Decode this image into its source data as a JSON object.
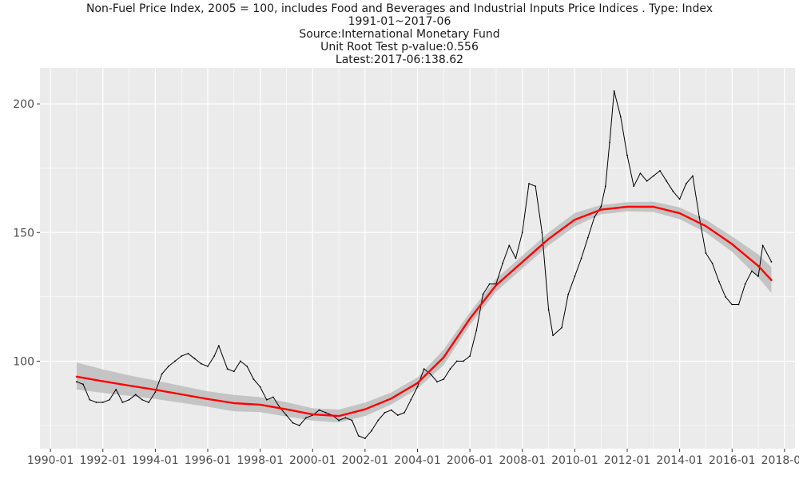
{
  "chart_data": {
    "type": "line",
    "title_lines": [
      "Non-Fuel Price Index, 2005 = 100, includes Food and Beverages and Industrial Inputs Price Indices . Type: Index",
      "1991-01~2017-06",
      "Source:International Monetary Fund",
      "Unit Root Test p-value:0.556",
      "Latest:2017-06:138.62"
    ],
    "xlabel": "",
    "ylabel": "",
    "x_ticks": [
      1990,
      1992,
      1994,
      1996,
      1998,
      2000,
      2002,
      2004,
      2006,
      2008,
      2010,
      2012,
      2014,
      2016,
      2018
    ],
    "x_tick_labels": [
      "1990-01",
      "1992-01",
      "1994-01",
      "1996-01",
      "1998-01",
      "2000-01",
      "2002-01",
      "2004-01",
      "2006-01",
      "2008-01",
      "2010-01",
      "2012-01",
      "2014-01",
      "2016-01",
      "2018-01"
    ],
    "y_ticks": [
      100,
      150,
      200
    ],
    "y_tick_labels": [
      "100",
      "150",
      "200"
    ],
    "xlim": [
      1989.6,
      2018.4
    ],
    "ylim": [
      66,
      214
    ],
    "grid": true,
    "colors": {
      "panel": "#ebebeb",
      "grid": "#ffffff",
      "series": "#000000",
      "smooth": "#ff0000",
      "band": "#bdbdbd",
      "tick_text": "#4d4d4d"
    },
    "series": [
      {
        "name": "Non-Fuel Price Index",
        "x": [
          1991.0,
          1991.25,
          1991.5,
          1991.75,
          1992.0,
          1992.25,
          1992.5,
          1992.75,
          1993.0,
          1993.25,
          1993.5,
          1993.75,
          1994.0,
          1994.25,
          1994.5,
          1994.75,
          1995.0,
          1995.25,
          1995.5,
          1995.75,
          1996.0,
          1996.25,
          1996.42,
          1996.75,
          1997.0,
          1997.25,
          1997.5,
          1997.75,
          1998.0,
          1998.25,
          1998.5,
          1998.75,
          1999.0,
          1999.25,
          1999.5,
          1999.75,
          2000.0,
          2000.25,
          2000.5,
          2000.75,
          2001.0,
          2001.25,
          2001.5,
          2001.75,
          2002.0,
          2002.25,
          2002.5,
          2002.75,
          2003.0,
          2003.25,
          2003.5,
          2003.75,
          2004.0,
          2004.25,
          2004.5,
          2004.75,
          2005.0,
          2005.25,
          2005.5,
          2005.75,
          2006.0,
          2006.25,
          2006.5,
          2006.75,
          2007.0,
          2007.25,
          2007.5,
          2007.75,
          2008.0,
          2008.25,
          2008.5,
          2008.75,
          2009.0,
          2009.17,
          2009.5,
          2009.75,
          2010.0,
          2010.25,
          2010.5,
          2010.75,
          2011.0,
          2011.17,
          2011.33,
          2011.5,
          2011.75,
          2012.0,
          2012.25,
          2012.5,
          2012.75,
          2013.0,
          2013.25,
          2013.5,
          2013.75,
          2014.0,
          2014.25,
          2014.5,
          2014.75,
          2015.0,
          2015.25,
          2015.5,
          2015.75,
          2016.0,
          2016.25,
          2016.5,
          2016.75,
          2017.0,
          2017.17,
          2017.5
        ],
        "values": [
          92,
          91,
          85,
          84,
          84,
          85,
          89,
          84,
          85,
          87,
          85,
          84,
          88,
          95,
          98,
          100,
          102,
          103,
          101,
          99,
          98,
          102,
          106,
          97,
          96,
          100,
          98,
          93,
          90,
          85,
          86,
          82,
          79,
          76,
          75,
          78,
          79,
          81,
          80,
          79,
          77,
          78,
          77,
          71,
          70,
          73,
          77,
          80,
          81,
          79,
          80,
          85,
          90,
          97,
          95,
          92,
          93,
          97,
          100,
          100,
          102,
          112,
          126,
          130,
          130,
          138,
          145,
          140,
          150,
          169,
          168,
          150,
          120,
          110,
          113,
          126,
          133,
          140,
          148,
          156,
          160,
          168,
          185,
          205,
          195,
          180,
          168,
          173,
          170,
          172,
          174,
          170,
          166,
          163,
          169,
          172,
          156,
          142,
          138,
          131,
          125,
          122,
          122,
          130,
          135,
          133,
          145,
          138.62
        ]
      }
    ],
    "smooth": {
      "name": "trend",
      "x": [
        1991.0,
        1992.0,
        1993.0,
        1994.0,
        1995.0,
        1996.0,
        1997.0,
        1998.0,
        1999.0,
        2000.0,
        2001.0,
        2002.0,
        2003.0,
        2004.0,
        2005.0,
        2006.0,
        2007.0,
        2008.0,
        2009.0,
        2010.0,
        2011.0,
        2012.0,
        2013.0,
        2014.0,
        2015.0,
        2016.0,
        2017.0,
        2017.5
      ],
      "values": [
        94,
        92.2,
        90.5,
        88.9,
        87.1,
        85.3,
        83.7,
        83.1,
        81.3,
        79.3,
        78.7,
        81.3,
        85.5,
        91.5,
        101.5,
        116.5,
        129.5,
        138.5,
        147.5,
        155,
        158.9,
        160,
        160,
        157.5,
        152.5,
        145.5,
        137,
        131.5
      ],
      "lower": [
        89,
        87.7,
        86.5,
        85.3,
        83.8,
        82.3,
        80.5,
        80.2,
        78.5,
        76.9,
        76.2,
        78.7,
        83.2,
        89.3,
        98.5,
        114,
        127,
        136,
        145,
        152.4,
        157.1,
        158.2,
        158,
        155.2,
        150,
        142.5,
        132.5,
        126.5
      ],
      "upper": [
        99.5,
        96.8,
        94.5,
        92.5,
        90.4,
        88.3,
        86.9,
        86,
        84.1,
        81.7,
        81.2,
        83.9,
        87.8,
        93.7,
        104.5,
        119,
        132,
        141,
        150,
        157.6,
        160.7,
        161.8,
        162,
        159.8,
        155,
        148.5,
        141.5,
        136.5
      ]
    }
  }
}
